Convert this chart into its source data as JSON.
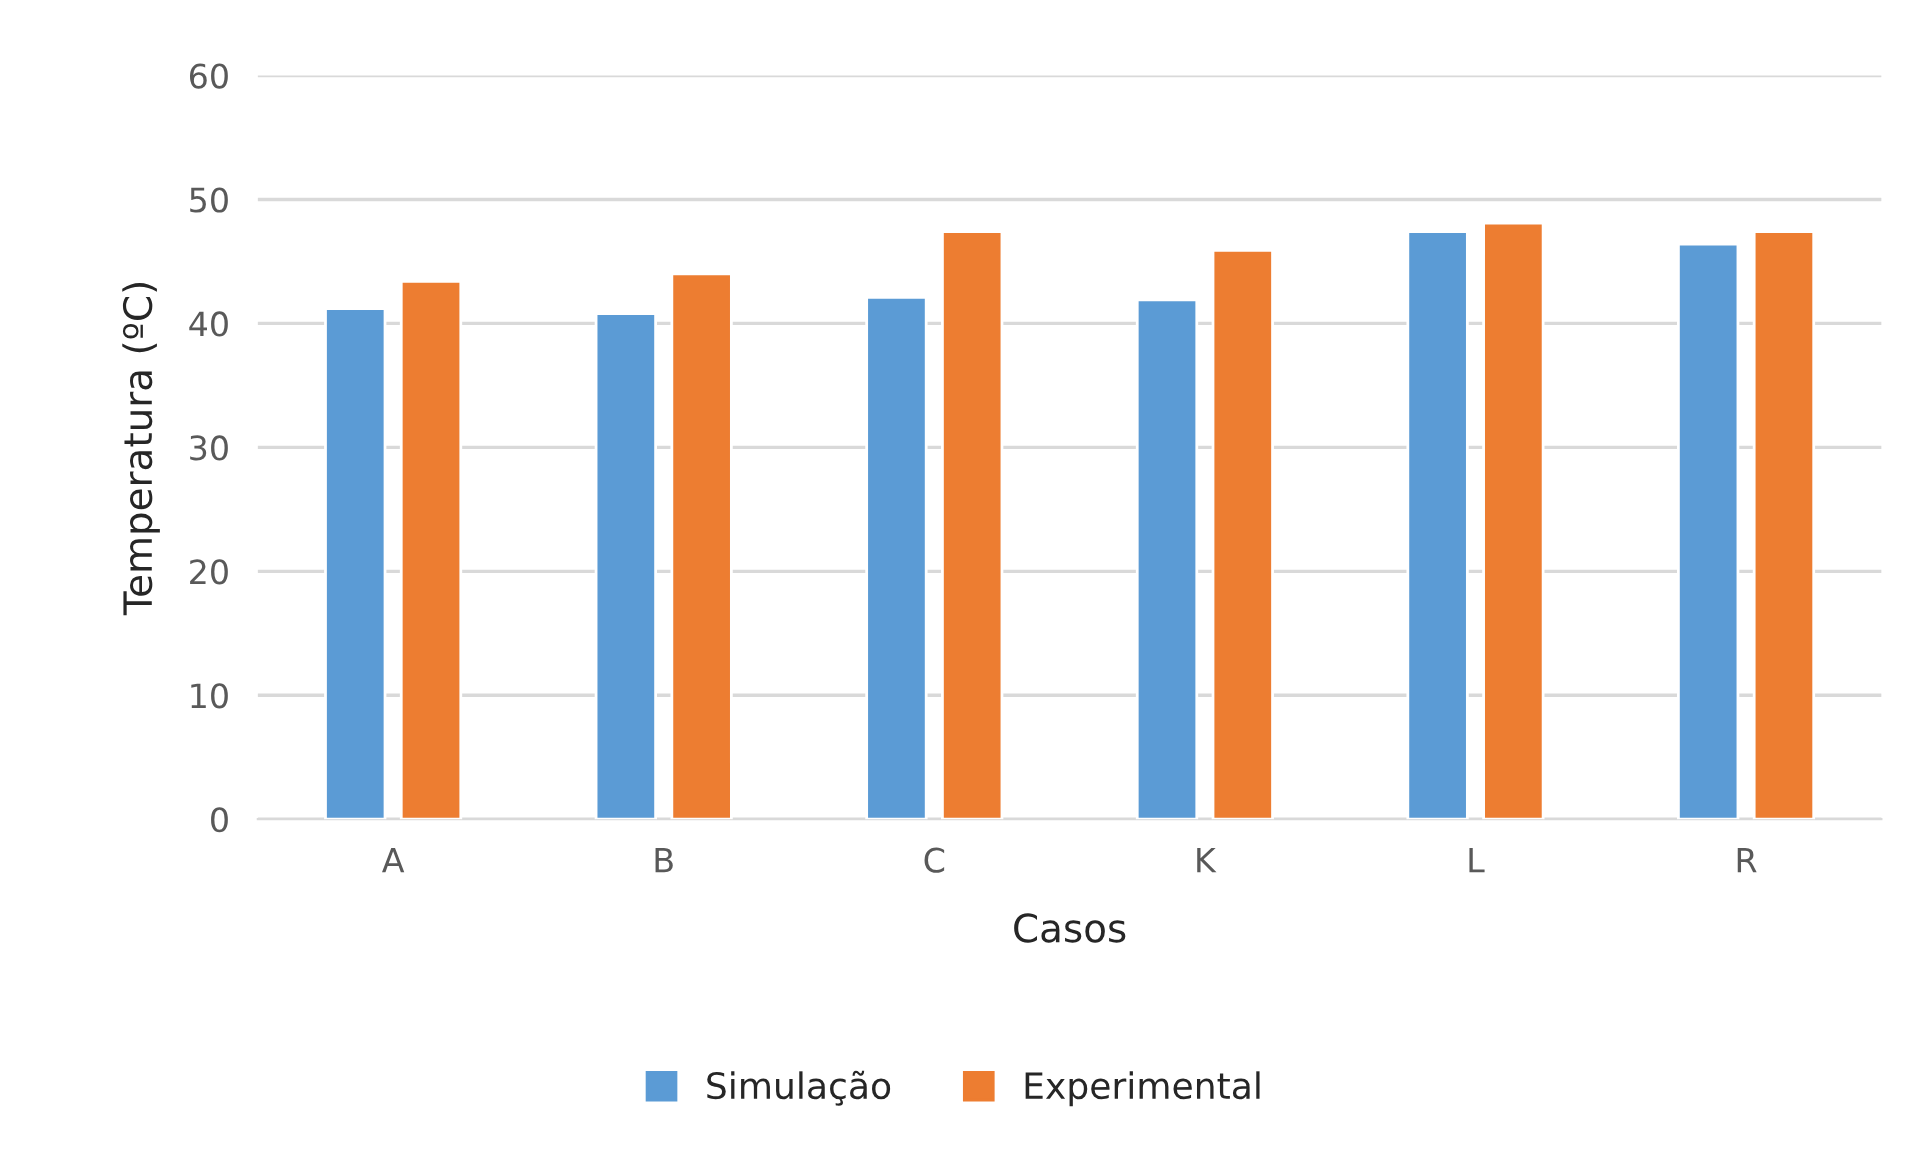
{
  "chart_data": {
    "type": "bar",
    "xlabel": "Casos",
    "ylabel": "Temperatura (ºC)",
    "categories": [
      "A",
      "B",
      "C",
      "K",
      "L",
      "R"
    ],
    "series": [
      {
        "name": "Simulação",
        "color": "#5b9bd5",
        "values": [
          41.2,
          40.8,
          42.1,
          41.9,
          47.4,
          46.4
        ]
      },
      {
        "name": "Experimental",
        "color": "#ed7d31",
        "values": [
          43.4,
          44.0,
          47.4,
          45.9,
          48.1,
          47.4
        ]
      }
    ],
    "ylim": [
      0,
      60
    ],
    "yticks": [
      0,
      10,
      20,
      30,
      40,
      50,
      60
    ],
    "grid": "y",
    "legend": "bottom"
  }
}
